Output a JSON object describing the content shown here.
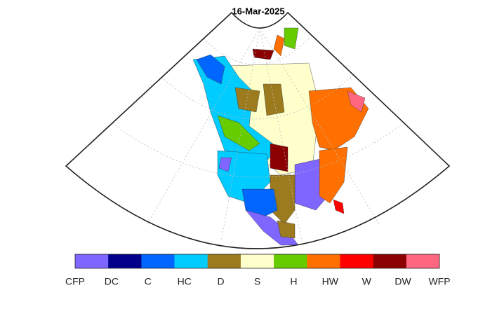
{
  "title": "16-Mar-2025",
  "legend": {
    "items": [
      {
        "label": "CFP",
        "color": "#7f66ff"
      },
      {
        "label": "DC",
        "color": "#00008b"
      },
      {
        "label": "C",
        "color": "#0066ff"
      },
      {
        "label": "HC",
        "color": "#00ccff"
      },
      {
        "label": "D",
        "color": "#9c7b1e"
      },
      {
        "label": "S",
        "color": "#ffffcc"
      },
      {
        "label": "H",
        "color": "#66cc00"
      },
      {
        "label": "HW",
        "color": "#ff7000"
      },
      {
        "label": "W",
        "color": "#ff0000"
      },
      {
        "label": "DW",
        "color": "#8b0000"
      },
      {
        "label": "WFP",
        "color": "#ff6680"
      }
    ]
  }
}
